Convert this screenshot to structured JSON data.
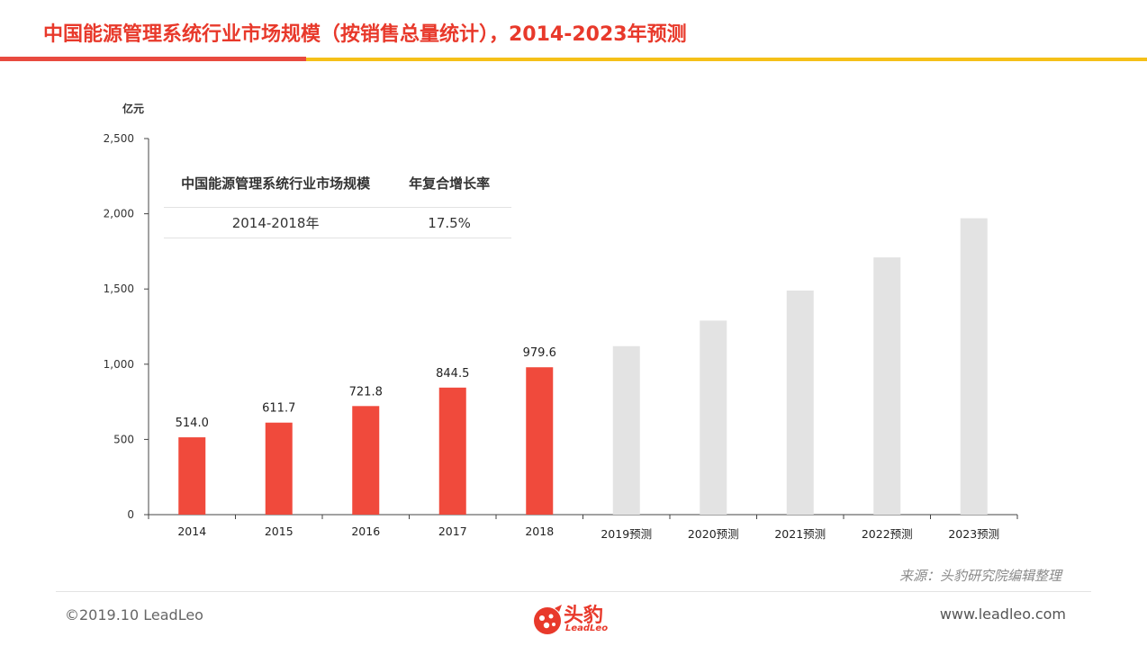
{
  "page": {
    "title": "中国能源管理系统行业市场规模（按销售总量统计），2014-2023年预测",
    "source": "来源：头豹研究院编辑整理",
    "copyright": "©2019.10 LeadLeo",
    "website": "www.leadleo.com",
    "logo_cn": "头豹",
    "logo_en": "LeadLeo"
  },
  "colors": {
    "accent_red": "#e84a3f",
    "accent_yellow": "#f5c018",
    "bar_actual": "#f04a3c",
    "bar_forecast": "#e3e3e3"
  },
  "table": {
    "headers": [
      "中国能源管理系统行业市场规模",
      "年复合增长率"
    ],
    "rows": [
      [
        "2014-2018年",
        "17.5%"
      ]
    ]
  },
  "chart_data": {
    "type": "bar",
    "ylabel": "亿元",
    "ylim": [
      0,
      2500
    ],
    "yticks": [
      0,
      500,
      1000,
      1500,
      2000,
      2500
    ],
    "ytick_labels": [
      "0",
      "500",
      "1,000",
      "1,500",
      "2,000",
      "2,500"
    ],
    "categories": [
      "2014",
      "2015",
      "2016",
      "2017",
      "2018",
      "2019预测",
      "2020预测",
      "2021预测",
      "2022预测",
      "2023预测"
    ],
    "values": [
      514.0,
      611.7,
      721.8,
      844.5,
      979.6,
      1120,
      1290,
      1490,
      1710,
      1970
    ],
    "data_labels": [
      "514.0",
      "611.7",
      "721.8",
      "844.5",
      "979.6",
      "",
      "",
      "",
      "",
      ""
    ],
    "forecast": [
      false,
      false,
      false,
      false,
      false,
      true,
      true,
      true,
      true,
      true
    ],
    "grid": false,
    "legend": "none"
  }
}
